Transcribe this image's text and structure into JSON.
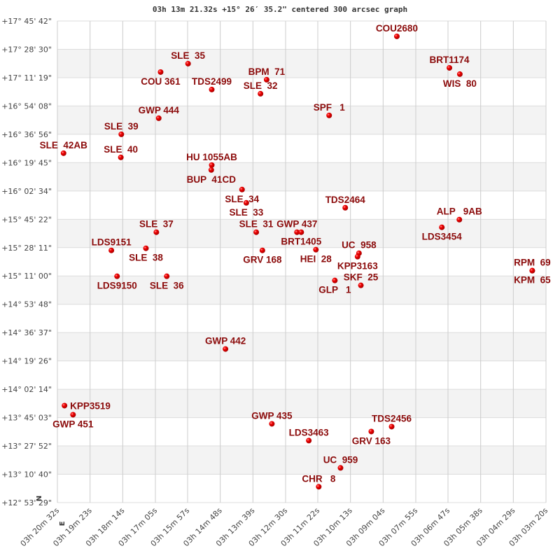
{
  "chart_data": {
    "type": "scatter",
    "title": "03h 13m 21.32s +15° 26′ 35.2\" centered 300 arcsec graph",
    "xlabel": "",
    "ylabel": "",
    "x_axis": {
      "quantity": "right ascension",
      "direction": "decreasing to the right",
      "range": [
        "03h 20m 32s",
        "03h 03m 20s"
      ],
      "ticks": [
        "03h 20m 32s",
        "03h 19m 23s",
        "03h 18m 14s",
        "03h 17m 05s",
        "03h 15m 57s",
        "03h 14m 48s",
        "03h 13m 39s",
        "03h 12m 30s",
        "03h 11m 22s",
        "03h 10m 13s",
        "03h 09m 04s",
        "03h 07m 55s",
        "03h 06m 47s",
        "03h 05m 38s",
        "03h 04m 29s",
        "03h 03m 20s"
      ]
    },
    "y_axis": {
      "quantity": "declination",
      "range": [
        "+12° 53' 29\"",
        "+17° 45' 42\""
      ],
      "ticks": [
        "+17° 45' 42\"",
        "+17° 28' 30\"",
        "+17° 11' 19\"",
        "+16° 54' 08\"",
        "+16° 36' 56\"",
        "+16° 19' 45\"",
        "+16° 02' 34\"",
        "+15° 45' 22\"",
        "+15° 28' 11\"",
        "+15° 11' 00\"",
        "+14° 53' 48\"",
        "+14° 36' 37\"",
        "+14° 19' 26\"",
        "+14° 02' 14\"",
        "+13° 45' 03\"",
        "+13° 27' 52\"",
        "+13° 10' 40\"",
        "+12° 53' 29\""
      ]
    },
    "grid": true,
    "alternating_bands": true,
    "compass": {
      "north": "N",
      "east": "E"
    },
    "marker_color": "#e00000",
    "label_color": "#8b0a0a",
    "points": [
      {
        "name": "COU2680",
        "ra": "03h 08m 35s",
        "dec": "+17° 36' 22\""
      },
      {
        "name": "SLE  35",
        "ra": "03h 15m 56s",
        "dec": "+17° 19' 49\""
      },
      {
        "name": "COU 361",
        "ra": "03h 16m 54s",
        "dec": "+17° 14' 43\""
      },
      {
        "name": "BRT1174",
        "ra": "03h 06m 44s",
        "dec": "+17° 17' 16\""
      },
      {
        "name": "WIS  80",
        "ra": "03h 06m 22s",
        "dec": "+17° 13' 27\""
      },
      {
        "name": "BPM  71",
        "ra": "03h 13m 10s",
        "dec": "+17° 10' 03\""
      },
      {
        "name": "TDS2499",
        "ra": "03h 15m 06s",
        "dec": "+17° 04' 07\""
      },
      {
        "name": "SLE  32",
        "ra": "03h 13m 23s",
        "dec": "+17° 01' 34\""
      },
      {
        "name": "SPF   1",
        "ra": "03h 10m 58s",
        "dec": "+16° 48' 25\""
      },
      {
        "name": "GWP 444",
        "ra": "03h 16m 58s",
        "dec": "+16° 46' 43\""
      },
      {
        "name": "SLE  39",
        "ra": "03h 18m 17s",
        "dec": "+16° 36' 57\""
      },
      {
        "name": "SLE  42AB",
        "ra": "03h 20m 19s",
        "dec": "+16° 25' 30\""
      },
      {
        "name": "SLE  40",
        "ra": "03h 18m 18s",
        "dec": "+16° 22' 57\""
      },
      {
        "name": "HU 1055AB",
        "ra": "03h 15m 06s",
        "dec": "+16° 18' 17\""
      },
      {
        "name": "BUP  41CD",
        "ra": "03h 15m 07s",
        "dec": "+16° 15' 19\""
      },
      {
        "name": "SLE  34",
        "ra": "03h 14m 02s",
        "dec": "+16° 03' 26\""
      },
      {
        "name": "SLE  33",
        "ra": "03h 13m 53s",
        "dec": "+15° 55' 22\""
      },
      {
        "name": "TDS2464",
        "ra": "03h 10m 24s",
        "dec": "+15° 52' 24\""
      },
      {
        "name": "ALP   9AB",
        "ra": "03h 06m 23s",
        "dec": "+15° 45' 11\""
      },
      {
        "name": "LDS3454",
        "ra": "03h 07m 00s",
        "dec": "+15° 40' 31\""
      },
      {
        "name": "SLE  37",
        "ra": "03h 17m 03s",
        "dec": "+15° 37' 33\""
      },
      {
        "name": "SLE  31",
        "ra": "03h 13m 32s",
        "dec": "+15° 37' 33\""
      },
      {
        "name": "GWP 437",
        "ra": "03h 12m 06s",
        "dec": "+15° 37' 33\""
      },
      {
        "name": "BRT1405",
        "ra": "03h 11m 57s",
        "dec": "+15° 37' 33\""
      },
      {
        "name": "GRV 168",
        "ra": "03h 13m 19s",
        "dec": "+15° 26' 31\""
      },
      {
        "name": "HEI  28",
        "ra": "03h 11m 26s",
        "dec": "+15° 26' 57\""
      },
      {
        "name": "UC  958",
        "ra": "03h 09m 55s",
        "dec": "+15° 24' 49\""
      },
      {
        "name": "KPP3163",
        "ra": "03h 09m 58s",
        "dec": "+15° 22' 42\""
      },
      {
        "name": "LDS9151",
        "ra": "03h 18m 38s",
        "dec": "+15° 26' 31\""
      },
      {
        "name": "SLE  38",
        "ra": "03h 17m 25s",
        "dec": "+15° 27' 47\""
      },
      {
        "name": "LDS9150",
        "ra": "03h 18m 26s",
        "dec": "+15° 10' 49\""
      },
      {
        "name": "SLE  36",
        "ra": "03h 16m 41s",
        "dec": "+15° 10' 49\""
      },
      {
        "name": "RPM  69",
        "ra": "03h 03m 49s",
        "dec": "+15° 14' 13\""
      },
      {
        "name": "KPM  65",
        "ra": "03h 03m 49s",
        "dec": "+15° 14' 13\""
      },
      {
        "name": "GLP   1",
        "ra": "03h 10m 46s",
        "dec": "+15° 08' 16\""
      },
      {
        "name": "SKF  25",
        "ra": "03h 09m 51s",
        "dec": "+15° 05' 18\""
      },
      {
        "name": "GWP 442",
        "ra": "03h 14m 37s",
        "dec": "+14° 26' 41\""
      },
      {
        "name": "KPP3519",
        "ra": "03h 20m 17s",
        "dec": "+13° 52' 19\""
      },
      {
        "name": "GWP 451",
        "ra": "03h 19m 59s",
        "dec": "+13° 46' 48\""
      },
      {
        "name": "GWP 435",
        "ra": "03h 12m 59s",
        "dec": "+13° 41' 17\""
      },
      {
        "name": "TDS2456",
        "ra": "03h 08m 46s",
        "dec": "+13° 39' 35\""
      },
      {
        "name": "GRV 163",
        "ra": "03h 09m 29s",
        "dec": "+13° 36' 37\""
      },
      {
        "name": "LDS3463",
        "ra": "03h 11m 41s",
        "dec": "+13° 31' 06\""
      },
      {
        "name": "UC  959",
        "ra": "03h 10m 34s",
        "dec": "+13° 14' 33\""
      },
      {
        "name": "CHR   8",
        "ra": "03h 11m 20s",
        "dec": "+13° 03' 06\""
      }
    ]
  }
}
